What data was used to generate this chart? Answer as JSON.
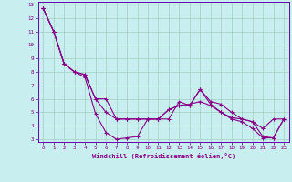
{
  "xlabel": "Windchill (Refroidissement éolien,°C)",
  "background_color": "#c8eef0",
  "grid_color": "#a0d0c0",
  "line_color": "#880088",
  "spine_color": "#6600aa",
  "xlim": [
    -0.5,
    23.5
  ],
  "ylim": [
    2.8,
    13.2
  ],
  "yticks": [
    3,
    4,
    5,
    6,
    7,
    8,
    9,
    10,
    11,
    12,
    13
  ],
  "xticks": [
    0,
    1,
    2,
    3,
    4,
    5,
    6,
    7,
    8,
    9,
    10,
    11,
    12,
    13,
    14,
    15,
    16,
    17,
    18,
    19,
    20,
    21,
    22,
    23
  ],
  "series": [
    [
      12.7,
      11.0,
      8.6,
      8.0,
      7.6,
      4.9,
      3.5,
      3.0,
      3.1,
      3.2,
      4.5,
      4.5,
      4.5,
      5.8,
      5.5,
      6.7,
      5.8,
      5.6,
      5.0,
      4.5,
      4.3,
      3.8,
      4.5,
      4.5
    ],
    [
      12.7,
      11.0,
      8.6,
      8.0,
      7.8,
      6.0,
      6.0,
      4.5,
      4.5,
      4.5,
      4.5,
      4.5,
      5.2,
      5.5,
      5.6,
      5.8,
      5.5,
      5.0,
      4.6,
      4.5,
      4.3,
      3.2,
      3.1,
      4.5
    ],
    [
      12.7,
      11.0,
      8.6,
      8.0,
      7.8,
      6.0,
      5.0,
      4.5,
      4.5,
      4.5,
      4.5,
      4.5,
      5.2,
      5.5,
      5.5,
      6.7,
      5.6,
      5.0,
      4.5,
      4.3,
      3.8,
      3.1,
      3.1,
      4.5
    ]
  ]
}
